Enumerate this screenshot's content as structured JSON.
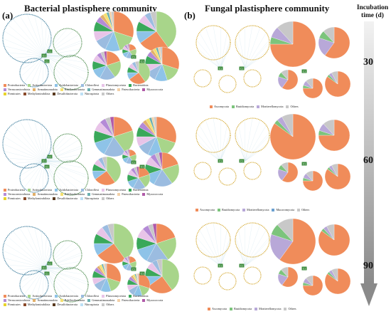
{
  "panel_a": {
    "label": "(a)",
    "title": "Bacterial plastisphere community",
    "legend": [
      {
        "name": "Proteobacteria",
        "color": "#f08c5a"
      },
      {
        "name": "Actinobacteriota",
        "color": "#a8d58a"
      },
      {
        "name": "Acidobacteriota",
        "color": "#8ec3e8"
      },
      {
        "name": "Chloroflexi",
        "color": "#9bbce0"
      },
      {
        "name": "Planctomycetota",
        "color": "#e8c4e8"
      },
      {
        "name": "Bacteroidota",
        "color": "#3aa85a"
      },
      {
        "name": "Verrucomicrobiota",
        "color": "#b48ad6"
      },
      {
        "name": "Armatimonadota",
        "color": "#e2b06a"
      },
      {
        "name": "Bdellovibrionota",
        "color": "#f5e070"
      },
      {
        "name": "Gemmatimonadota",
        "color": "#6ab0b0"
      },
      {
        "name": "Patescibacteria",
        "color": "#f2d0a8"
      },
      {
        "name": "Myxococcota",
        "color": "#b05aa8"
      },
      {
        "name": "Firmicutes",
        "color": "#e8d22a"
      },
      {
        "name": "Methylomirabilota",
        "color": "#8a4a2a"
      },
      {
        "name": "Desulfobacterota",
        "color": "#5a3a20"
      },
      {
        "name": "Nitrospirota",
        "color": "#bde0f5"
      },
      {
        "name": "Others",
        "color": "#c8c8c8"
      }
    ]
  },
  "panel_b": {
    "label": "(b)",
    "title": "Fungal plastisphere community",
    "legend_rows": [
      [
        {
          "name": "Ascomycota",
          "color": "#f08c5a"
        },
        {
          "name": "Basidiomycota",
          "color": "#7cc47c"
        },
        {
          "name": "Mortierellomycota",
          "color": "#b8a8d8"
        },
        {
          "name": "Others",
          "color": "#c8c8c8"
        }
      ],
      [
        {
          "name": "Ascomycota",
          "color": "#f08c5a"
        },
        {
          "name": "Basidiomycota",
          "color": "#7cc47c"
        },
        {
          "name": "Mortierellomycota",
          "color": "#b8a8d8"
        },
        {
          "name": "Mucoromycota",
          "color": "#6aa0d0"
        },
        {
          "name": "Others",
          "color": "#c8c8c8"
        }
      ],
      [
        {
          "name": "Ascomycota",
          "color": "#f08c5a"
        },
        {
          "name": "Basidiomycota",
          "color": "#7cc47c"
        },
        {
          "name": "Mortierellomycota",
          "color": "#b8a8d8"
        },
        {
          "name": "Others",
          "color": "#c8c8c8"
        }
      ]
    ]
  },
  "incubation": {
    "label_line1": "Incubation",
    "label_line2": "time (d)",
    "times": [
      "30",
      "60",
      "90"
    ]
  },
  "node_label": "C1"
}
